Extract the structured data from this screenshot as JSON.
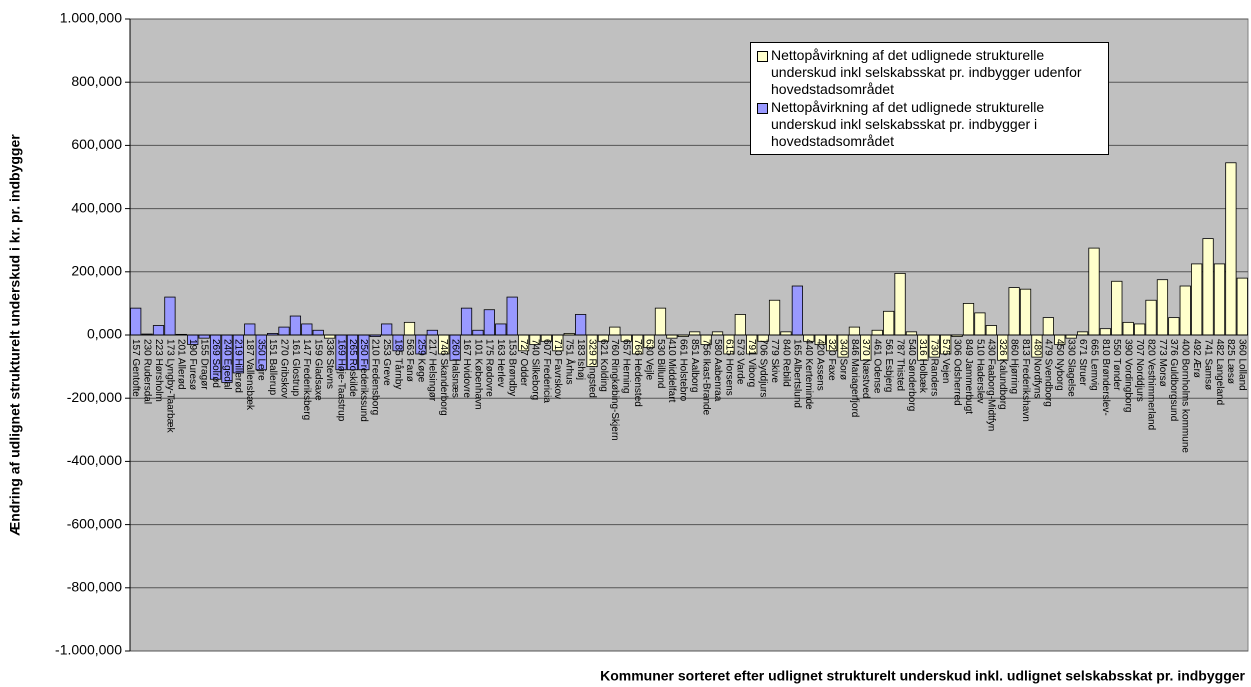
{
  "chart_data": {
    "type": "bar",
    "y_label": "Ændring af udlignet strukturelt underskud i kr. pr. indbygger",
    "x_label": "Kommuner sorteret efter udlignet strukturelt underskud inkl. udlignet selskabsskat pr. indbygger",
    "categories": [
      "157 Gentofte",
      "230 Rudersdal",
      "223 Hørsholm",
      "173 Lyngby-Taarbæk",
      "201 Allerød",
      "190 Furesø",
      "155 Dragør",
      "269 Solrød",
      "240 Egedal",
      "219 Hillerød",
      "187 Vallensbæk",
      "350 Lejre",
      "151 Ballerup",
      "270 Gribskov",
      "161 Glostrup",
      "147 Frederiksberg",
      "159 Gladsaxe",
      "336 Stevns",
      "169 Høje-Taastrup",
      "265 Roskilde",
      "250 Frederikssund",
      "210 Fredensborg",
      "253 Greve",
      "185 Tårnby",
      "563 Fanø",
      "259 Køge",
      "217 Helsingør",
      "746 Skanderborg",
      "260 Halsnæs",
      "167 Hvidovre",
      "101 København",
      "175 Rødovre",
      "163 Herlev",
      "153 Brøndby",
      "727 Odder",
      "740 Silkeborg",
      "607 Fredericia",
      "710 Favrskov",
      "751 Århus",
      "183 Ishøj",
      "329 Ringsted",
      "621 Kolding",
      "760 Ringkøbing-Skjern",
      "657 Herning",
      "766 Hedensted",
      "630 Vejle",
      "530 Billund",
      "410 Middelfart",
      "661 Holstebro",
      "851 Aalborg",
      "756 Ikast-Brande",
      "580 Aabenraa",
      "615 Horsens",
      "573 Varde",
      "791 Viborg",
      "706 Syddjurs",
      "779 Skive",
      "840 Rebild",
      "165 Albertslund",
      "440 Kerteminde",
      "420 Assens",
      "320 Faxe",
      "340 Sorø",
      "846 Mariagerfjord",
      "370 Næstved",
      "461 Odense",
      "561 Esbjerg",
      "787 Thisted",
      "540 Sønderborg",
      "316 Holbæk",
      "730 Randers",
      "575 Vejen",
      "306 Odsherred",
      "849 Jammerbugt",
      "510 Haderslev",
      "430 Faaborg-Midtfyn",
      "326 Kalundborg",
      "860 Hjørring",
      "813 Frederikshavn",
      "480 Nordfyns",
      "479 Svendborg",
      "450 Nyborg",
      "330 Slagelse",
      "671 Struer",
      "665 Lemvig",
      "810 Brønderslev-",
      "550 Tønder",
      "390 Vordingborg",
      "707 Norddjurs",
      "820 Vesthimmerland",
      "773 Morsø",
      "376 Guldborgsund",
      "400 Bornholms kommune",
      "492 Ærø",
      "741 Samsø",
      "482 Langeland",
      "825 Læsø",
      "360 Lolland"
    ],
    "series": [
      {
        "name": "Nettopåvirkning af det udlignede strukturelle underskud inkl selskabsskat pr. indbygger udenfor hovedstadsområdet",
        "color": "#ffffcc",
        "values": [
          null,
          null,
          null,
          null,
          null,
          null,
          null,
          null,
          null,
          null,
          null,
          null,
          null,
          null,
          null,
          null,
          null,
          -10,
          null,
          null,
          null,
          null,
          null,
          null,
          40,
          null,
          null,
          -60,
          null,
          null,
          null,
          null,
          null,
          null,
          -50,
          -30,
          -20,
          -50,
          5,
          null,
          -100,
          -20,
          25,
          -20,
          -60,
          -40,
          85,
          -10,
          -5,
          10,
          -30,
          10,
          -60,
          65,
          -60,
          -20,
          110,
          10,
          null,
          -20,
          -30,
          -50,
          -70,
          25,
          -80,
          15,
          75,
          195,
          10,
          -80,
          -70,
          -60,
          -5,
          100,
          70,
          30,
          -80,
          150,
          145,
          -70,
          55,
          -30,
          -10,
          10,
          275,
          20,
          170,
          40,
          35,
          110,
          175,
          55,
          155,
          225,
          305,
          225,
          545,
          180
        ]
      },
      {
        "name": "Nettopåvirkning af det udlignede strukturelle underskud inkl selskabsskat pr. indbygger i hovedstadsområdet",
        "color": "#9999ff",
        "values": [
          85,
          3,
          30,
          120,
          2,
          -30,
          -10,
          -140,
          -150,
          -120,
          35,
          -110,
          5,
          25,
          60,
          35,
          15,
          null,
          -110,
          -110,
          -110,
          -5,
          35,
          -50,
          null,
          -60,
          15,
          null,
          -80,
          85,
          15,
          80,
          35,
          120,
          null,
          null,
          null,
          null,
          null,
          65,
          null,
          null,
          null,
          null,
          null,
          null,
          null,
          null,
          null,
          null,
          null,
          null,
          null,
          null,
          null,
          null,
          null,
          null,
          155,
          null,
          null,
          null,
          null,
          null,
          null,
          null,
          null,
          null,
          null,
          null,
          null,
          null,
          null,
          null,
          null,
          null,
          null,
          null,
          null,
          null,
          null,
          null,
          null,
          null,
          null,
          null,
          null,
          null,
          null,
          null,
          null,
          null,
          null,
          null,
          null,
          null,
          null,
          null
        ]
      }
    ],
    "ylim": [
      -1000,
      1000
    ],
    "yticks": [
      {
        "value": -1000,
        "label": "-1.000,000"
      },
      {
        "value": -800,
        "label": "-800,000"
      },
      {
        "value": -600,
        "label": "-600,000"
      },
      {
        "value": -400,
        "label": "-400,000"
      },
      {
        "value": -200,
        "label": "-200,000"
      },
      {
        "value": 0,
        "label": "0,000"
      },
      {
        "value": 200,
        "label": "200,000"
      },
      {
        "value": 400,
        "label": "400,000"
      },
      {
        "value": 600,
        "label": "600,000"
      },
      {
        "value": 800,
        "label": "800,000"
      },
      {
        "value": 1000,
        "label": "1.000,000"
      }
    ],
    "grid": true
  }
}
